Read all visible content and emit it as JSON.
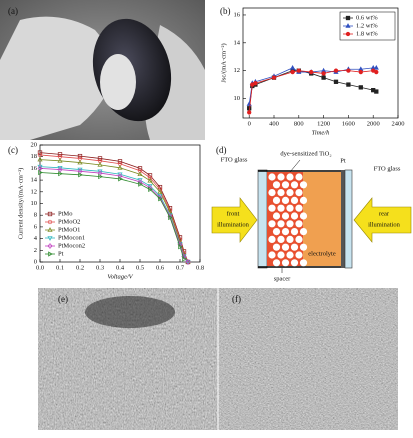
{
  "panel_labels": [
    "(a)",
    "(b)",
    "(c)",
    "(d)",
    "(e)",
    "(f)"
  ],
  "chart_data": [
    {
      "type": "line",
      "xlabel": "Time/h",
      "ylabel": "Jsc/(mA·cm⁻²)",
      "x": [
        0,
        50,
        100,
        400,
        700,
        800,
        1000,
        1200,
        1400,
        1600,
        1800,
        2000,
        2050
      ],
      "xlim": [
        -100,
        2400
      ],
      "xticks": [
        0,
        400,
        800,
        1200,
        1600,
        2000,
        2400
      ],
      "ylim": [
        8.6,
        16.5
      ],
      "yticks": [
        10,
        12,
        14,
        16
      ],
      "legend": "upper right",
      "filled_markers": true,
      "series": [
        {
          "name": "0.6 wt%",
          "color": "#222222",
          "marker": "square",
          "values": [
            9.3,
            10.9,
            11.0,
            11.5,
            12.0,
            12.0,
            11.8,
            11.5,
            11.2,
            11.0,
            10.8,
            10.6,
            10.5
          ]
        },
        {
          "name": "1.2 wt%",
          "color": "#3050c0",
          "marker": "triangle-up",
          "values": [
            9.6,
            11.1,
            11.2,
            11.6,
            12.2,
            11.9,
            11.9,
            12.0,
            11.9,
            12.1,
            12.1,
            12.2,
            12.2
          ]
        },
        {
          "name": "1.8 wt%",
          "color": "#e02020",
          "marker": "circle",
          "values": [
            9.0,
            11.0,
            11.1,
            11.5,
            11.9,
            12.0,
            11.9,
            11.8,
            12.0,
            12.0,
            11.9,
            12.0,
            11.9
          ]
        }
      ]
    },
    {
      "type": "line",
      "xlabel": "Voltage/V",
      "ylabel": "Current density/(mA·cm⁻²)",
      "x": [
        0,
        0.1,
        0.2,
        0.3,
        0.4,
        0.5,
        0.55,
        0.6,
        0.65,
        0.7,
        0.72,
        0.74
      ],
      "xlim": [
        0,
        0.8
      ],
      "xticks": [
        {
          "value": 0,
          "label": "0.0"
        },
        0.1,
        0.2,
        0.3,
        0.4,
        0.5,
        0.6,
        0.7,
        0.8
      ],
      "ylim": [
        0,
        20
      ],
      "yticks": [
        0,
        2,
        4,
        6,
        8,
        10,
        12,
        14,
        16,
        18,
        20
      ],
      "legend": "lower left",
      "filled_markers": false,
      "series": [
        {
          "name": "PtMo",
          "color": "#8b1a1a",
          "marker": "square",
          "values": [
            18.7,
            18.4,
            18.1,
            17.7,
            17.2,
            16.0,
            14.8,
            12.8,
            9.2,
            4.2,
            1.8,
            0
          ]
        },
        {
          "name": "PtMoO2",
          "color": "#e05050",
          "marker": "circle",
          "values": [
            18.3,
            18.0,
            17.7,
            17.3,
            16.8,
            15.6,
            14.4,
            12.4,
            8.8,
            3.8,
            1.5,
            0
          ]
        },
        {
          "name": "PtMoO1",
          "color": "#7a8a20",
          "marker": "triangle-up",
          "values": [
            17.5,
            17.3,
            17.0,
            16.6,
            16.1,
            15.0,
            13.9,
            12.0,
            8.5,
            3.5,
            1.2,
            0
          ]
        },
        {
          "name": "PtMocon1",
          "color": "#30b8c0",
          "marker": "triangle-down",
          "values": [
            16.3,
            16.1,
            15.8,
            15.5,
            15.0,
            14.0,
            13.0,
            11.3,
            8.0,
            3.1,
            1.0,
            0
          ]
        },
        {
          "name": "PtMocon2",
          "color": "#c040c0",
          "marker": "diamond",
          "values": [
            16.0,
            15.8,
            15.5,
            15.2,
            14.7,
            13.7,
            12.7,
            11.0,
            7.8,
            3.0,
            0.9,
            0
          ]
        },
        {
          "name": "Pt",
          "color": "#2e8b2e",
          "marker": "triangle-right",
          "values": [
            15.3,
            15.1,
            14.9,
            14.6,
            14.2,
            13.3,
            12.4,
            10.8,
            7.6,
            2.6,
            0.5,
            null
          ]
        }
      ]
    }
  ],
  "diagram": {
    "fto_left": "FTO glass",
    "tio2": "dye-sensitized TiO₂",
    "pt": "Pt",
    "fto_right": "FTO glass",
    "front_1": "front",
    "front_2": "illumination",
    "rear_1": "rear",
    "rear_2": "illumination",
    "electrolyte": "electrolyte",
    "spacer": "spacer"
  }
}
